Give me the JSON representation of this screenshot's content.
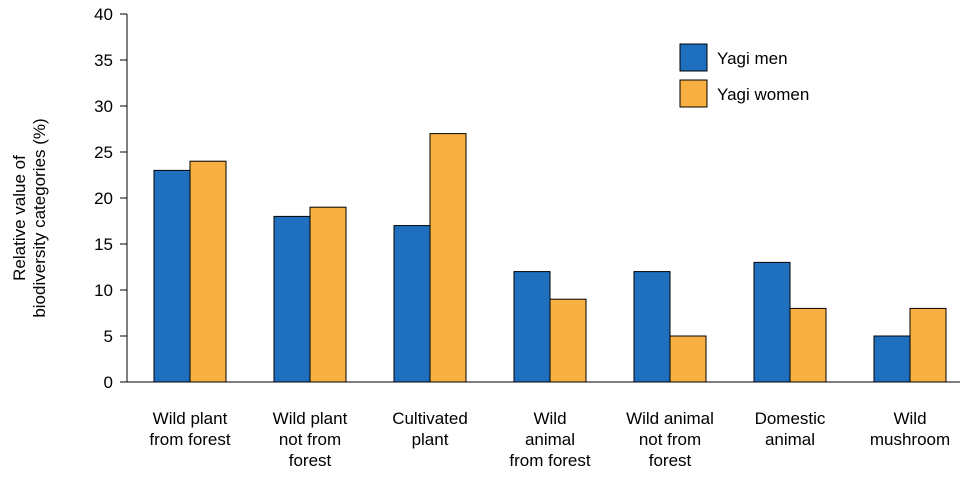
{
  "chart_data": {
    "type": "bar",
    "categories": [
      [
        "Wild plant",
        "from forest"
      ],
      [
        "Wild plant",
        "not from",
        "forest"
      ],
      [
        "Cultivated",
        "plant"
      ],
      [
        "Wild",
        "animal",
        "from forest"
      ],
      [
        "Wild animal",
        "not from",
        "forest"
      ],
      [
        "Domestic",
        "animal"
      ],
      [
        "Wild",
        "mushroom"
      ]
    ],
    "series": [
      {
        "name": "Yagi men",
        "color": "#1f6fbf",
        "values": [
          23,
          18,
          17,
          12,
          12,
          13,
          5
        ]
      },
      {
        "name": "Yagi women",
        "color": "#f9b042",
        "values": [
          24,
          19,
          27,
          9,
          5,
          8,
          8
        ]
      }
    ],
    "ylabel_lines": [
      "Relative value of",
      "biodiversity categories (%)"
    ],
    "xlabel": "",
    "ylim": [
      0,
      40
    ],
    "yticks": [
      0,
      5,
      10,
      15,
      20,
      25,
      30,
      35,
      40
    ],
    "grid": false,
    "legend_position": "top-right"
  }
}
